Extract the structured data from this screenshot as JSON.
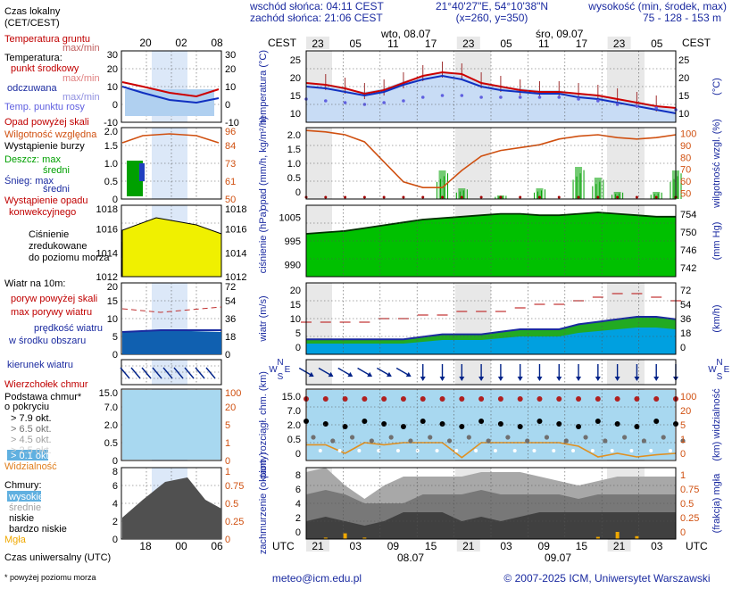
{
  "header": {
    "sunrise": "wschód słońca: 04:11 CEST",
    "sunset": "zachód słońca: 21:06 CEST",
    "coords": "21°40'27\"E, 54°10'38\"N",
    "grid": "(x=260, y=350)",
    "elev_title": "wysokość (min, środek, max)",
    "elev_values": "75 - 128 - 153 m"
  },
  "legend": {
    "local_time_1": "Czas lokalny",
    "local_time_2": "(CET/CEST)",
    "temp_ground": "Temperatura gruntu",
    "temp_maxmin": "max/min",
    "temp_title": "Temperatura:",
    "temp_mid": "punkt środkowy",
    "temp_mid_mm": "max/min",
    "temp_felt": "odczuwana",
    "temp_felt_mm": "max/min",
    "dewpoint": "Temp. punktu rosy",
    "precip_above": "Opad powyżej skali",
    "humidity": "Wilgotność względna",
    "storm": "Wystąpienie burzy",
    "rain_max": "Deszcz: max",
    "rain_mid": "średni",
    "snow_max": "Śnieg:   max",
    "snow_mid": "średni",
    "conv_1": "Wystąpienie opadu",
    "conv_2": "konwekcyjnego",
    "pressure_1": "Ciśnienie",
    "pressure_2": "zredukowane",
    "pressure_3": "do poziomu morza",
    "wind_title": "Wiatr na 10m:",
    "gust_above": "poryw powyżej skali",
    "gust_max": "max porywy wiatru",
    "wind_speed_1": "prędkość wiatru",
    "wind_speed_2": "w środku obszaru",
    "wind_dir": "kierunek wiatru",
    "cloud_top": "Wierzchołek chmur",
    "cloud_base_1": "Podstawa chmur*",
    "cloud_base_2": "o pokryciu",
    "okt_79": "> 7.9 okt.",
    "okt_65": "> 6.5 okt.",
    "okt_45": "> 4.5 okt.",
    "okt_25": "> 2.5 okt.",
    "okt_01": "> 0.1 okt.",
    "visibility": "Widzialność",
    "clouds_title": "Chmury:",
    "cl_high": "wysokie",
    "cl_mid": "średnie",
    "cl_low": "niskie",
    "cl_vlow": "bardzo niskie",
    "fog": "Mgła",
    "utc_label": "Czas uniwersalny (UTC)",
    "footnote": "* powyżej poziomu morza",
    "left_top_ticks": [
      "20",
      "02",
      "08"
    ],
    "left_bottom_ticks": [
      "18",
      "00",
      "06"
    ],
    "left_temp_ticks": [
      "30",
      "20",
      "10",
      "0",
      "-10"
    ],
    "left_prec_ticks": [
      "2.0",
      "1.5",
      "1.0",
      "0.5",
      "0"
    ],
    "left_hum_ticks": [
      "96",
      "84",
      "73",
      "61",
      "50"
    ],
    "left_pres_ticks": [
      "1018",
      "1016",
      "1014",
      "1012"
    ],
    "left_wind_ticks": [
      "20",
      "15",
      "10",
      "5",
      "0"
    ],
    "left_windkmh_ticks": [
      "72",
      "54",
      "36",
      "18",
      "0"
    ],
    "left_base_ticks": [
      "15.0",
      "7.0",
      "2.0",
      "0.5",
      "0"
    ],
    "left_vis_ticks": [
      "100",
      "20",
      "5",
      "1",
      "0"
    ],
    "left_okt_ticks": [
      "8",
      "6",
      "4",
      "2",
      "0"
    ],
    "left_frac_ticks": [
      "1",
      "0.75",
      "0.5",
      "0.25",
      "0"
    ]
  },
  "main": {
    "cest": "CEST",
    "utc": "UTC",
    "top_hours": [
      "23",
      "05",
      "11",
      "17",
      "23",
      "05",
      "11",
      "17",
      "23",
      "05"
    ],
    "bottom_hours": [
      "21",
      "03",
      "09",
      "15",
      "21",
      "03",
      "09",
      "15",
      "21",
      "03"
    ],
    "date_top_1": "wto, 08.07",
    "date_top_2": "śro, 09.07",
    "date_bottom_1": "08.07",
    "date_bottom_2": "09.07",
    "ylabels": {
      "temp": "temperatura (°C)",
      "prec": "opad (mm/h, kg/m²/h)",
      "pres": "ciśnienie (hPa)",
      "wind": "wiatr (m/s)",
      "base": "pion. rozciągł. chm. (km)",
      "clouds": "zachmurzenie (oktanty)"
    },
    "rlabels": {
      "temp": "(°C)",
      "hum": "wilgotność wzgl. (%)",
      "pres": "(mm Hg)",
      "wind": "(km/h)",
      "vis": "(km) widzialność",
      "fog": "(frakcja) mgła"
    },
    "ticks": {
      "temp": [
        "25",
        "20",
        "15",
        "10"
      ],
      "prec": [
        "2.0",
        "1.5",
        "1.0",
        "0.5",
        "0"
      ],
      "hum": [
        "100",
        "90",
        "80",
        "70",
        "60",
        "50"
      ],
      "pres": [
        "1005",
        "995",
        "990"
      ],
      "mmhg": [
        "754",
        "750",
        "746",
        "742"
      ],
      "wind": [
        "20",
        "15",
        "10",
        "5",
        "0"
      ],
      "kmh": [
        "72",
        "54",
        "36",
        "18",
        "0"
      ],
      "base": [
        "15.0",
        "7.0",
        "2.0",
        "0.5",
        "0"
      ],
      "vis": [
        "100",
        "20",
        "5",
        "1",
        "0"
      ],
      "okt": [
        "8",
        "6",
        "4",
        "2",
        "0"
      ],
      "frac": [
        "1",
        "0.75",
        "0.5",
        "0.25",
        "0"
      ]
    },
    "compass": [
      "N",
      "W",
      "E",
      "S"
    ]
  },
  "footer": {
    "email": "meteo@icm.edu.pl",
    "copyright": "© 2007-2025 ICM, Uniwersytet Warszawski"
  },
  "colors": {
    "temp": "#cc0000",
    "felt": "#1030c0",
    "dew": "#6060e0",
    "humidity": "#d05010",
    "rain": "#00a000",
    "pressure": "#00c000",
    "wind": "#00a0e0",
    "arrow": "#002288",
    "cloud_bg": "#a8d8f0",
    "night": "#e8e8e8"
  },
  "chart_data": [
    {
      "type": "line",
      "title": "temperatura",
      "xlabel": "",
      "ylabel": "temperatura (°C)",
      "x": [
        "21",
        "00",
        "03",
        "06",
        "09",
        "12",
        "15",
        "18",
        "21",
        "00",
        "03",
        "06",
        "09",
        "12",
        "15",
        "18",
        "21",
        "00",
        "03",
        "06"
      ],
      "series": [
        {
          "values": [
            19,
            18.5,
            17.5,
            16,
            17,
            19,
            21,
            22,
            21.5,
            19,
            18,
            17,
            16.5,
            16.5,
            16,
            15.5,
            14.5,
            13.5,
            12.5,
            12
          ]
        },
        {
          "values": [
            18,
            17.5,
            16.5,
            15.5,
            16.5,
            18.5,
            20,
            21,
            20,
            18,
            17,
            16.5,
            16,
            16,
            15,
            14.5,
            13.5,
            12.5,
            11.5,
            10.5
          ]
        },
        {
          "values": [
            14.5,
            14,
            13.5,
            13,
            13.5,
            14,
            15,
            15.5,
            15.5,
            15,
            15,
            15,
            15,
            15,
            14.5,
            14,
            13,
            12.5,
            12,
            11.5
          ]
        }
      ],
      "ylim": [
        8,
        28
      ]
    },
    {
      "type": "bar",
      "title": "opad",
      "xlabel": "",
      "ylabel": "opad (mm/h, kg/m²/h)",
      "x": [
        "21",
        "00",
        "03",
        "06",
        "09",
        "12",
        "15",
        "18",
        "21",
        "00",
        "03",
        "06",
        "09",
        "12",
        "15",
        "18",
        "21",
        "00",
        "03",
        "06"
      ],
      "series": [
        {
          "values": [
            0,
            0,
            0,
            0,
            0,
            0,
            0,
            0.8,
            0.3,
            0,
            0.1,
            0,
            0.3,
            0,
            0.9,
            0.6,
            0.2,
            0,
            0.2,
            0.8
          ]
        },
        {
          "values": [
            98,
            97,
            95,
            90,
            76,
            62,
            58,
            58,
            70,
            80,
            84,
            86,
            88,
            92,
            94,
            95,
            93,
            92,
            93,
            95
          ]
        }
      ],
      "ylim": [
        0,
        2
      ]
    },
    {
      "type": "area",
      "title": "ciśnienie",
      "xlabel": "",
      "ylabel": "ciśnienie (hPa)",
      "x": [
        "21",
        "00",
        "03",
        "06",
        "09",
        "12",
        "15",
        "18",
        "21",
        "00",
        "03",
        "06",
        "09",
        "12",
        "15",
        "18",
        "21",
        "00",
        "03",
        "06"
      ],
      "series": [
        {
          "values": [
            1000,
            1000.5,
            1001,
            1002,
            1003,
            1004,
            1005,
            1005.5,
            1006,
            1006.5,
            1007,
            1007,
            1006.5,
            1006.5,
            1007,
            1007.5,
            1007,
            1006.5,
            1006,
            1006
          ]
        }
      ],
      "ylim": [
        990,
        1010
      ]
    },
    {
      "type": "line",
      "title": "wiatr",
      "xlabel": "",
      "ylabel": "wiatr (m/s)",
      "x": [
        "21",
        "00",
        "03",
        "06",
        "09",
        "12",
        "15",
        "18",
        "21",
        "00",
        "03",
        "06",
        "09",
        "12",
        "15",
        "18",
        "21",
        "00",
        "03",
        "06"
      ],
      "series": [
        {
          "values": [
            3,
            3,
            3,
            3,
            3,
            3,
            3.5,
            4,
            4,
            4,
            4.5,
            5,
            5,
            5,
            6,
            6.5,
            7,
            7.5,
            7.5,
            7
          ]
        },
        {
          "values": [
            9,
            9,
            9,
            9,
            10,
            10,
            11,
            11,
            12,
            12,
            12,
            13,
            14,
            14,
            15,
            16,
            17,
            17,
            16,
            15
          ]
        }
      ],
      "ylim": [
        0,
        20
      ]
    },
    {
      "type": "line",
      "title": "widzialność",
      "xlabel": "",
      "ylabel": "pion. rozciągł. chm. (km)",
      "x": [
        "21",
        "00",
        "03",
        "06",
        "09",
        "12",
        "15",
        "18",
        "21",
        "00",
        "03",
        "06",
        "09",
        "12",
        "15",
        "18",
        "21",
        "00",
        "03",
        "06"
      ],
      "series": [
        {
          "values": [
            22,
            22,
            10,
            25,
            22,
            25,
            25,
            25,
            4,
            25,
            25,
            25,
            25,
            25,
            20,
            5,
            10,
            5,
            8,
            10
          ]
        },
        {
          "values": [
            12,
            12,
            12,
            12,
            12,
            12,
            12,
            12,
            12,
            12,
            12,
            12,
            12,
            12,
            12,
            12,
            12,
            12,
            12,
            12
          ]
        }
      ],
      "ylim": [
        0,
        100
      ]
    },
    {
      "type": "area",
      "title": "zachmurzenie",
      "xlabel": "",
      "ylabel": "zachmurzenie (oktanty)",
      "x": [
        "21",
        "00",
        "03",
        "06",
        "09",
        "12",
        "15",
        "18",
        "21",
        "00",
        "03",
        "06",
        "09",
        "12",
        "15",
        "18",
        "21",
        "00",
        "03",
        "06"
      ],
      "series": [
        {
          "values": [
            7.5,
            8,
            6,
            4.5,
            6,
            7,
            7,
            7,
            7,
            7.5,
            7.5,
            7.5,
            7,
            6.5,
            6,
            6.5,
            7,
            7,
            7,
            7
          ]
        },
        {
          "values": [
            5,
            5.5,
            5,
            4,
            4,
            4,
            5,
            5,
            5,
            5.5,
            5,
            5,
            5,
            5,
            4.5,
            5,
            5,
            5,
            5,
            5
          ]
        },
        {
          "values": [
            2,
            2.5,
            2,
            1.5,
            2,
            3,
            3,
            3,
            2,
            2.5,
            2,
            2.5,
            3,
            3,
            3,
            3,
            3,
            3,
            3,
            3
          ]
        },
        {
          "values": [
            0,
            0.02,
            0.08,
            0.02,
            0,
            0,
            0,
            0,
            0,
            0,
            0,
            0,
            0,
            0,
            0,
            0.03,
            0.1,
            0.04,
            0,
            0
          ]
        }
      ],
      "ylim": [
        0,
        8
      ]
    }
  ]
}
